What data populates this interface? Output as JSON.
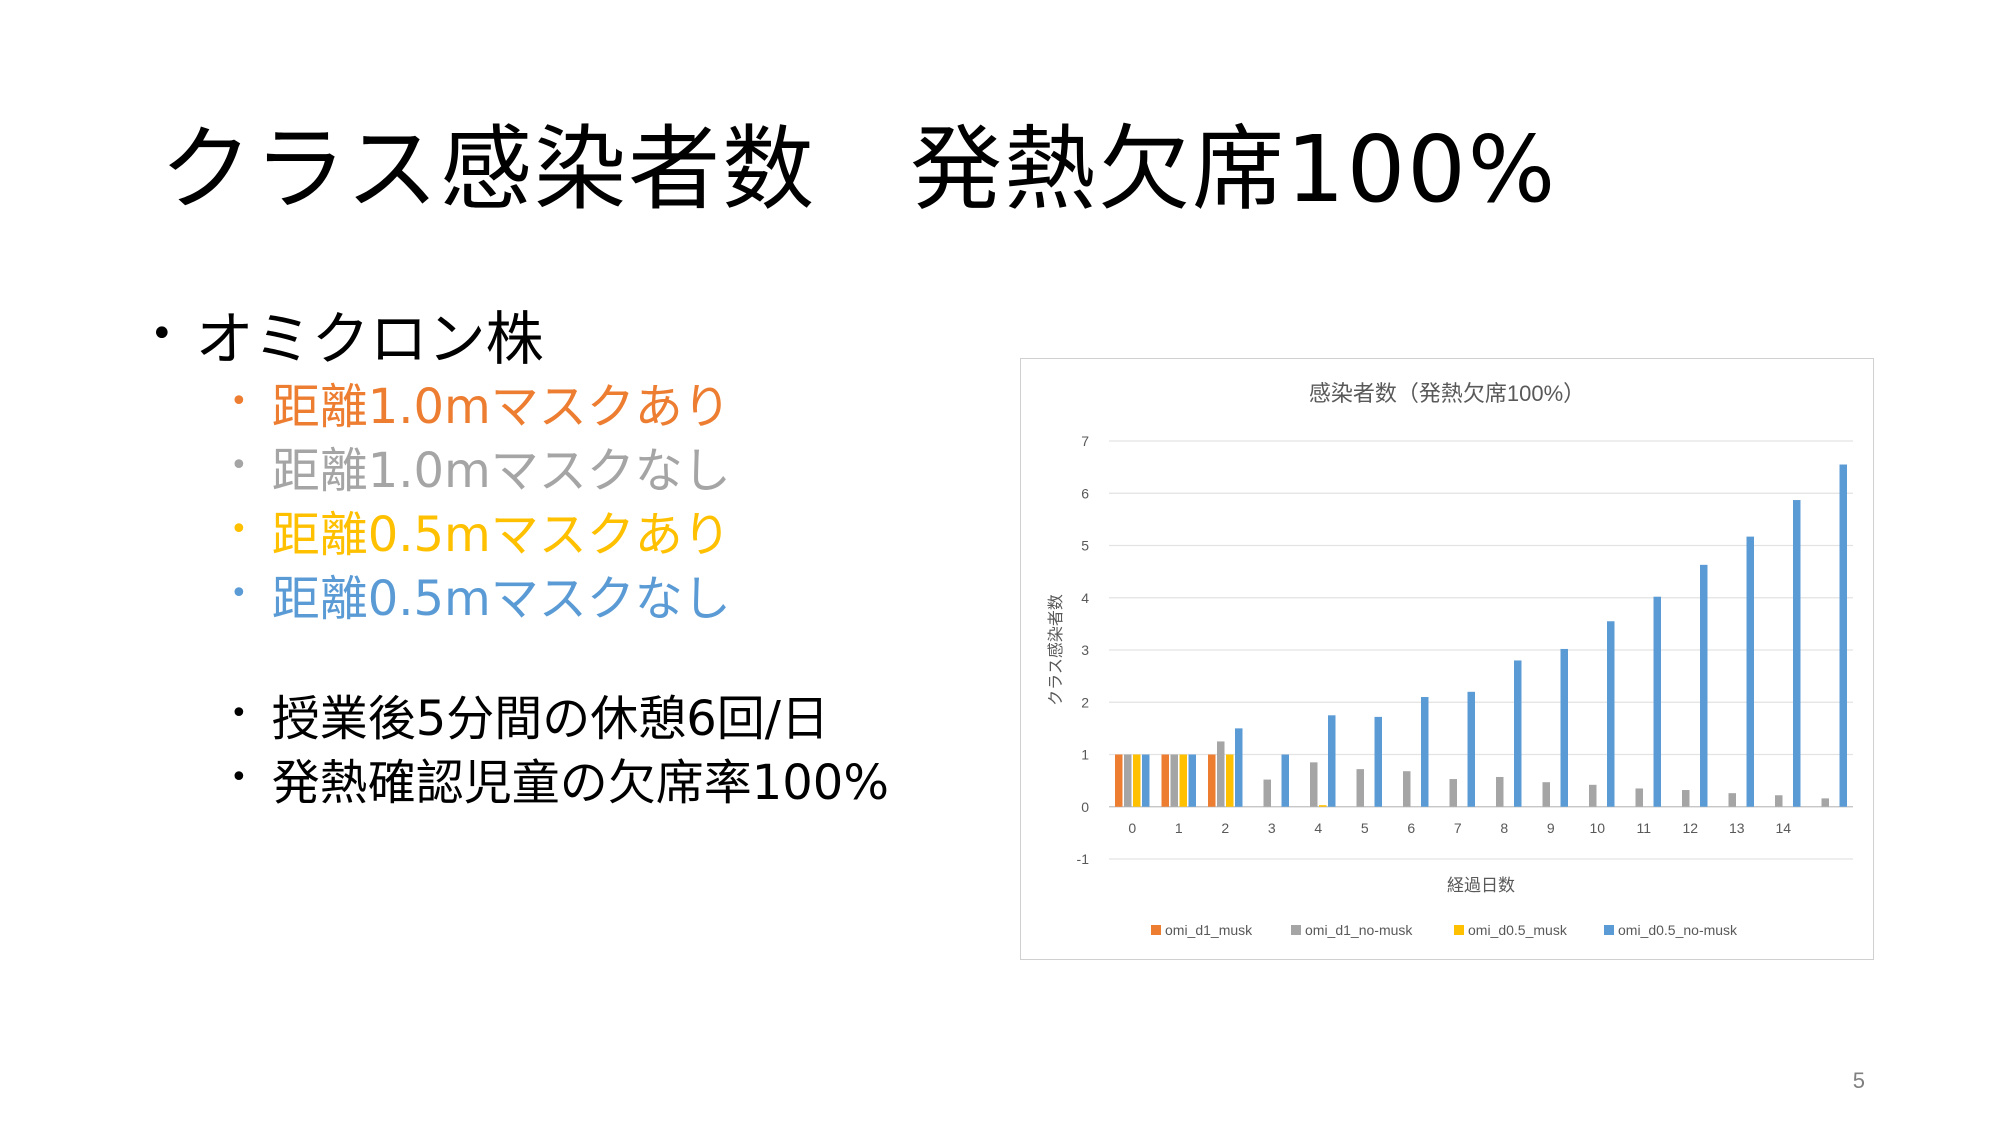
{
  "slide": {
    "title": "クラス感染者数　発熱欠席100%",
    "page_number": "5",
    "bullet_main": "オミクロン株",
    "conditions": [
      {
        "label": "距離1.0mマスクあり",
        "color": "#ED7D31"
      },
      {
        "label": "距離1.0mマスクなし",
        "color": "#A5A5A5"
      },
      {
        "label": "距離0.5mマスクあり",
        "color": "#FFC000"
      },
      {
        "label": "距離0.5mマスクなし",
        "color": "#5B9BD5"
      }
    ],
    "notes": [
      "授業後5分間の休憩6回/日",
      "発熱確認児童の欠席率100%"
    ]
  },
  "chart_data": {
    "type": "bar",
    "title": "感染者数（発熱欠席100%）",
    "xlabel": "経過日数",
    "ylabel": "クラス感染者数",
    "ylim": [
      -1,
      7
    ],
    "yticks": [
      -1,
      0,
      1,
      2,
      3,
      4,
      5,
      6,
      7
    ],
    "categories": [
      "0",
      "1",
      "2",
      "3",
      "4",
      "5",
      "6",
      "7",
      "8",
      "9",
      "10",
      "11",
      "12",
      "13",
      "14",
      ""
    ],
    "grid": true,
    "legend_position": "bottom",
    "series": [
      {
        "name": "omi_d1_musk",
        "color": "#ED7D31",
        "values": [
          1,
          1,
          1,
          0,
          0,
          0,
          0,
          0,
          0,
          0,
          0,
          0,
          0,
          0,
          0,
          0
        ]
      },
      {
        "name": "omi_d1_no-musk",
        "color": "#A5A5A5",
        "values": [
          1,
          1,
          1.25,
          0.52,
          0.85,
          0.72,
          0.68,
          0.53,
          0.57,
          0.47,
          0.42,
          0.35,
          0.32,
          0.26,
          0.22,
          0.16
        ]
      },
      {
        "name": "omi_d0.5_musk",
        "color": "#FFC000",
        "values": [
          1,
          1,
          1,
          0,
          0.03,
          0,
          0,
          0,
          0,
          0,
          0,
          0,
          0,
          0,
          0,
          0
        ]
      },
      {
        "name": "omi_d0.5_no-musk",
        "color": "#5B9BD5",
        "values": [
          1,
          1,
          1.5,
          1,
          1.75,
          1.72,
          2.1,
          2.2,
          2.8,
          3.02,
          3.55,
          4.02,
          4.63,
          5.17,
          5.87,
          6.55
        ]
      }
    ]
  }
}
